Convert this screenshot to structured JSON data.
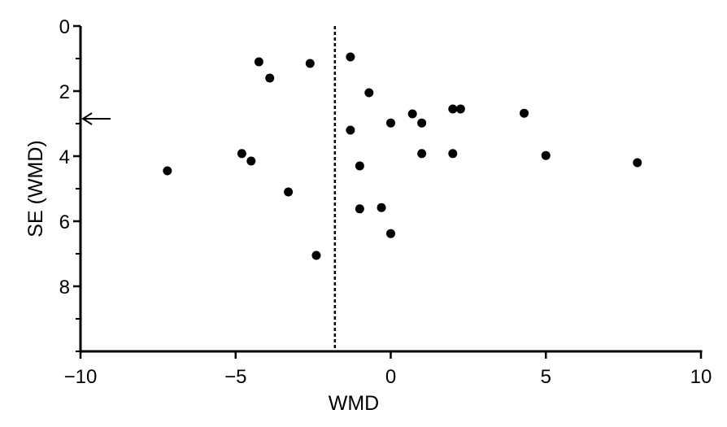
{
  "chart_data": {
    "type": "scatter",
    "title": "",
    "xlabel": "WMD",
    "ylabel": "SE (WMD)",
    "xlim": [
      -10,
      10
    ],
    "ylim": [
      0,
      10
    ],
    "y_inverted": true,
    "grid": false,
    "legend": "none",
    "x_ticks": [
      -10,
      -5,
      0,
      5,
      10
    ],
    "x_tick_labels": [
      "−10",
      "−5",
      "0",
      "5",
      "10"
    ],
    "y_ticks": [
      0,
      2,
      4,
      6,
      8
    ],
    "y_tick_labels": [
      "0",
      "2",
      "4",
      "6",
      "8"
    ],
    "y_minor_ticks": [
      1,
      3,
      5,
      7,
      9,
      10
    ],
    "reference_line_x": -1.8,
    "arrow_marker_y": 2.85,
    "points": [
      {
        "x": -7.2,
        "y": 4.45
      },
      {
        "x": -4.8,
        "y": 3.92
      },
      {
        "x": -4.5,
        "y": 4.15
      },
      {
        "x": -4.25,
        "y": 1.1
      },
      {
        "x": -3.9,
        "y": 1.6
      },
      {
        "x": -3.3,
        "y": 5.1
      },
      {
        "x": -2.6,
        "y": 1.15
      },
      {
        "x": -2.4,
        "y": 7.05
      },
      {
        "x": -1.3,
        "y": 0.95
      },
      {
        "x": -1.3,
        "y": 3.2
      },
      {
        "x": -1.0,
        "y": 4.3
      },
      {
        "x": -1.0,
        "y": 5.62
      },
      {
        "x": -0.7,
        "y": 2.05
      },
      {
        "x": -0.3,
        "y": 5.58
      },
      {
        "x": 0.0,
        "y": 2.98
      },
      {
        "x": 0.0,
        "y": 6.38
      },
      {
        "x": 0.7,
        "y": 2.7
      },
      {
        "x": 1.0,
        "y": 2.98
      },
      {
        "x": 1.0,
        "y": 3.92
      },
      {
        "x": 2.0,
        "y": 2.55
      },
      {
        "x": 2.25,
        "y": 2.55
      },
      {
        "x": 2.0,
        "y": 3.92
      },
      {
        "x": 4.3,
        "y": 2.68
      },
      {
        "x": 5.0,
        "y": 3.98
      },
      {
        "x": 7.95,
        "y": 4.2
      }
    ],
    "colors": {
      "axis": "#000000",
      "marker": "#000000"
    }
  }
}
